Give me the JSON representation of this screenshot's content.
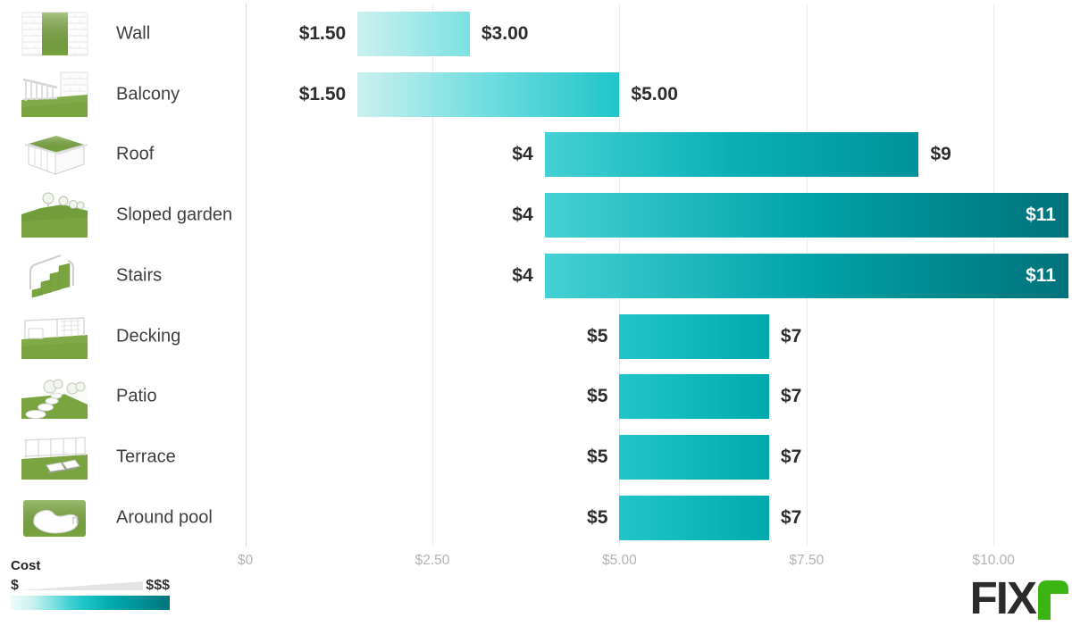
{
  "chart_data": {
    "type": "bar",
    "orientation": "horizontal",
    "title": "",
    "categories": [
      "Wall",
      "Balcony",
      "Roof",
      "Sloped garden",
      "Stairs",
      "Decking",
      "Patio",
      "Terrace",
      "Around pool"
    ],
    "series": [
      {
        "name": "minimum-cost",
        "values": [
          1.5,
          1.5,
          4,
          4,
          4,
          5,
          5,
          5,
          5
        ],
        "labels": [
          "$1.50",
          "$1.50",
          "$4",
          "$4",
          "$4",
          "$5",
          "$5",
          "$5",
          "$5"
        ]
      },
      {
        "name": "maximum-cost",
        "values": [
          3,
          5,
          9,
          11,
          11,
          7,
          7,
          7,
          7
        ],
        "labels": [
          "$3.00",
          "$5.00",
          "$9",
          "$11",
          "$11",
          "$7",
          "$7",
          "$7",
          "$7"
        ]
      }
    ],
    "max_label_inside": [
      false,
      false,
      false,
      true,
      true,
      false,
      false,
      false,
      false
    ],
    "icons": [
      "wall-icon",
      "balcony-icon",
      "roof-icon",
      "sloped-garden-icon",
      "stairs-icon",
      "decking-icon",
      "patio-icon",
      "terrace-icon",
      "around-pool-icon"
    ],
    "x_axis": {
      "range": [
        0,
        11
      ],
      "ticks": [
        {
          "value": 0,
          "label": "$0"
        },
        {
          "value": 2.5,
          "label": "$2.50"
        },
        {
          "value": 5,
          "label": "$5.00"
        },
        {
          "value": 7.5,
          "label": "$7.50"
        },
        {
          "value": 10,
          "label": "$10.00"
        }
      ]
    },
    "grid": "vertical",
    "color_scale": [
      {
        "value": 0,
        "color": "#ecfbfa"
      },
      {
        "value": 1.5,
        "color": "#cbf1ef"
      },
      {
        "value": 3,
        "color": "#7ce0e2"
      },
      {
        "value": 4,
        "color": "#44d1d5"
      },
      {
        "value": 5,
        "color": "#1fc5c9"
      },
      {
        "value": 7,
        "color": "#01a9ae"
      },
      {
        "value": 9,
        "color": "#00929a"
      },
      {
        "value": 11,
        "color": "#00727a"
      }
    ]
  },
  "legend": {
    "title": "Cost",
    "min_symbol": "$",
    "max_symbol": "$$$"
  },
  "logo": {
    "text_dark": "FIX",
    "text_green": "r",
    "green": "#3CB414",
    "dark": "#2B2B2B"
  },
  "colors": {
    "grass": "#79a440",
    "grass_dark": "#6b9536",
    "grass_light": "#8cb356",
    "sketch_stroke": "#cfcfcf",
    "gridline": "#ececec",
    "zero_line": "#dcdcdc",
    "axis_label": "#b3b3b3",
    "row_label": "#3e3e3e",
    "value_label": "#2d2d2d"
  }
}
